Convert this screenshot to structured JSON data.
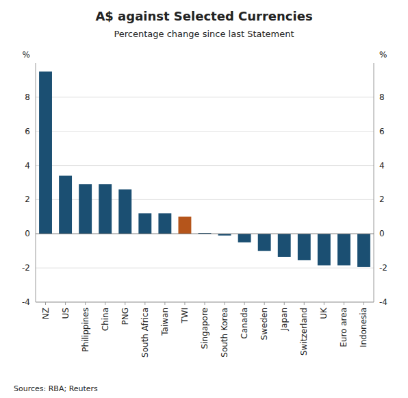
{
  "chart_data": {
    "type": "bar",
    "title": "A$ against Selected Currencies",
    "subtitle": "Percentage change since last Statement",
    "source": "Sources: RBA; Reuters",
    "ylabel": "%",
    "y2label": "%",
    "categories": [
      "NZ",
      "US",
      "Philippines",
      "China",
      "PNG",
      "South Africa",
      "Taiwan",
      "TWI",
      "Singapore",
      "South Korea",
      "Canada",
      "Sweden",
      "Japan",
      "Switzerland",
      "UK",
      "Euro area",
      "Indonesia"
    ],
    "values": [
      9.5,
      3.4,
      2.9,
      2.9,
      2.6,
      1.2,
      1.2,
      1.0,
      0.05,
      -0.1,
      -0.5,
      -1.0,
      -1.35,
      -1.55,
      -1.85,
      -1.85,
      -1.95
    ],
    "colors": [
      "#1b4f72",
      "#1b4f72",
      "#1b4f72",
      "#1b4f72",
      "#1b4f72",
      "#1b4f72",
      "#1b4f72",
      "#b5551b",
      "#1b4f72",
      "#1b4f72",
      "#1b4f72",
      "#1b4f72",
      "#1b4f72",
      "#1b4f72",
      "#1b4f72",
      "#1b4f72",
      "#1b4f72"
    ],
    "ylim": [
      -4,
      10
    ],
    "yticks": [
      -4,
      -2,
      0,
      2,
      4,
      6,
      8
    ],
    "y2lim": [
      -4,
      10
    ],
    "y2ticks": [
      -4,
      -2,
      0,
      2,
      4,
      6,
      8
    ],
    "grid": true
  }
}
